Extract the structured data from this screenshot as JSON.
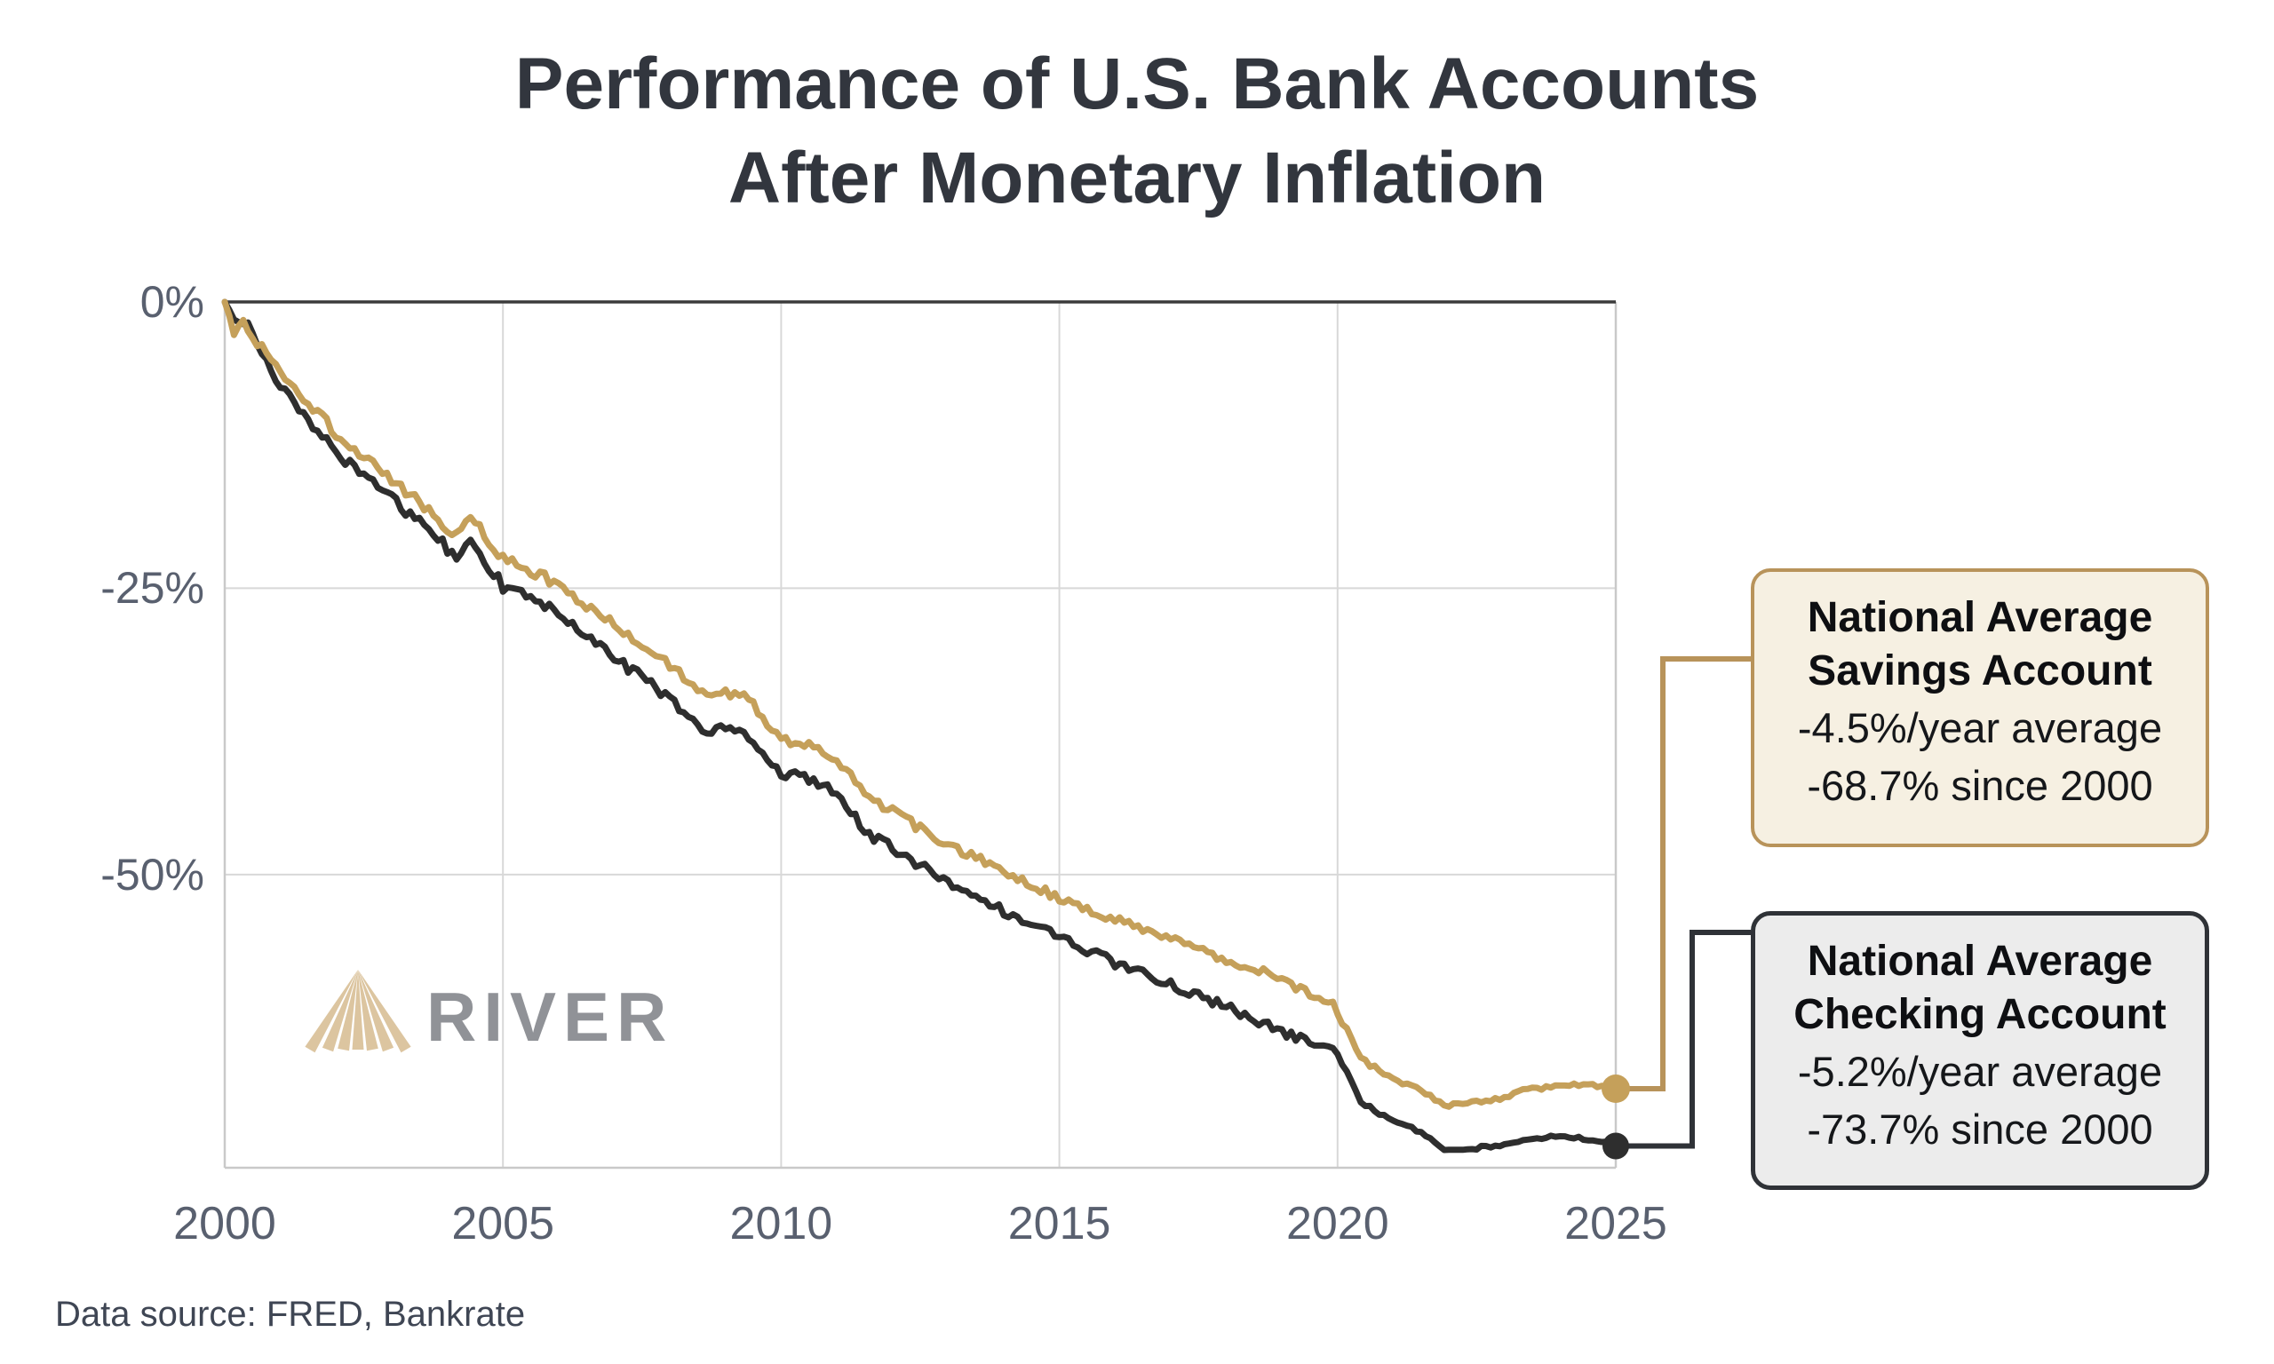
{
  "title": {
    "line1": "Performance of U.S. Bank Accounts",
    "line2": "After Monetary Inflation"
  },
  "footer": {
    "data_source": "Data source: FRED, Bankrate"
  },
  "logo": {
    "text": "RIVER",
    "icon": "river-fan-icon",
    "icon_color": "#dcc5a0",
    "text_color": "#909297"
  },
  "annotations": {
    "savings": {
      "title_line1": "National Average",
      "title_line2": "Savings Account",
      "stat1": "-4.5%/year average",
      "stat2": "-68.7% since 2000",
      "bg": "#f6f0e2",
      "border": "#b8935a"
    },
    "checking": {
      "title_line1": "National Average",
      "title_line2": "Checking Account",
      "stat1": "-5.2%/year average",
      "stat2": "-73.7% since 2000",
      "bg": "#ececec",
      "border": "#2f3237"
    }
  },
  "chart_data": {
    "type": "line",
    "title": "Performance of U.S. Bank Accounts After Monetary Inflation",
    "xlabel": "",
    "ylabel": "",
    "grid": true,
    "x": {
      "min": 2000,
      "max": 2025,
      "ticks": [
        2000,
        2005,
        2010,
        2015,
        2020,
        2025
      ],
      "tick_labels": [
        "2000",
        "2005",
        "2010",
        "2015",
        "2020",
        "2025"
      ]
    },
    "y": {
      "min": -75.6,
      "max": 0,
      "ticks": [
        0,
        -25,
        -50
      ],
      "tick_labels": [
        "0%",
        "-25%",
        "-50%"
      ]
    },
    "series": [
      {
        "name": "National Average Checking Account",
        "color": "#2e2e2e",
        "avg_per_year_pct": -5.2,
        "total_since_2000_pct": -73.7,
        "anchors": [
          [
            2000.0,
            0
          ],
          [
            2000.08,
            -0.8
          ],
          [
            2000.21,
            -2.2
          ],
          [
            2000.33,
            -1.9
          ],
          [
            2000.5,
            -2.6
          ],
          [
            2001.0,
            -7.5
          ],
          [
            2001.5,
            -10.2
          ],
          [
            2002.0,
            -13.0
          ],
          [
            2002.5,
            -15.2
          ],
          [
            2003.0,
            -17.2
          ],
          [
            2003.5,
            -19.3
          ],
          [
            2004.0,
            -21.5
          ],
          [
            2004.17,
            -22.4
          ],
          [
            2004.42,
            -20.8
          ],
          [
            2005.0,
            -24.8
          ],
          [
            2006.0,
            -27.2
          ],
          [
            2007.0,
            -31.0
          ],
          [
            2008.0,
            -34.8
          ],
          [
            2008.58,
            -37.3
          ],
          [
            2009.33,
            -37.5
          ],
          [
            2010.0,
            -41.1
          ],
          [
            2010.5,
            -41.6
          ],
          [
            2011.0,
            -42.9
          ],
          [
            2011.58,
            -46.5
          ],
          [
            2012.0,
            -47.7
          ],
          [
            2013.0,
            -50.7
          ],
          [
            2014.0,
            -53.2
          ],
          [
            2015.0,
            -55.4
          ],
          [
            2016.0,
            -57.7
          ],
          [
            2017.0,
            -59.6
          ],
          [
            2018.0,
            -61.6
          ],
          [
            2019.0,
            -63.7
          ],
          [
            2019.67,
            -64.9
          ],
          [
            2019.92,
            -65.2
          ],
          [
            2020.08,
            -66.5
          ],
          [
            2020.42,
            -69.7
          ],
          [
            2020.92,
            -71.4
          ],
          [
            2021.5,
            -72.5
          ],
          [
            2021.92,
            -74.2
          ],
          [
            2022.33,
            -73.9
          ],
          [
            2022.75,
            -73.8
          ],
          [
            2023.33,
            -73.1
          ],
          [
            2023.83,
            -72.9
          ],
          [
            2024.42,
            -73.0
          ],
          [
            2024.75,
            -73.3
          ],
          [
            2025.0,
            -73.7
          ]
        ]
      },
      {
        "name": "National Average Savings Account",
        "color": "#c5a05a",
        "avg_per_year_pct": -4.5,
        "total_since_2000_pct": -68.7,
        "anchors": [
          [
            2000.0,
            0
          ],
          [
            2000.08,
            -1.0
          ],
          [
            2000.21,
            -3.1
          ],
          [
            2000.29,
            -1.5
          ],
          [
            2000.5,
            -2.8
          ],
          [
            2001.0,
            -6.4
          ],
          [
            2001.5,
            -8.8
          ],
          [
            2002.0,
            -11.5
          ],
          [
            2002.5,
            -13.6
          ],
          [
            2003.0,
            -15.5
          ],
          [
            2003.5,
            -17.6
          ],
          [
            2004.0,
            -19.8
          ],
          [
            2004.17,
            -20.6
          ],
          [
            2004.42,
            -18.9
          ],
          [
            2005.0,
            -22.3
          ],
          [
            2006.0,
            -24.6
          ],
          [
            2007.0,
            -28.2
          ],
          [
            2008.0,
            -31.8
          ],
          [
            2008.58,
            -34.0
          ],
          [
            2009.33,
            -34.2
          ],
          [
            2010.0,
            -38.2
          ],
          [
            2010.5,
            -38.6
          ],
          [
            2011.0,
            -40.0
          ],
          [
            2011.58,
            -43.3
          ],
          [
            2012.0,
            -44.5
          ],
          [
            2013.0,
            -47.4
          ],
          [
            2014.0,
            -49.7
          ],
          [
            2015.0,
            -52.0
          ],
          [
            2016.0,
            -54.0
          ],
          [
            2017.0,
            -55.7
          ],
          [
            2018.0,
            -57.4
          ],
          [
            2019.0,
            -59.2
          ],
          [
            2019.67,
            -60.9
          ],
          [
            2019.92,
            -61.2
          ],
          [
            2020.08,
            -62.8
          ],
          [
            2020.42,
            -66.0
          ],
          [
            2020.92,
            -67.7
          ],
          [
            2021.5,
            -68.8
          ],
          [
            2021.92,
            -70.2
          ],
          [
            2022.33,
            -69.9
          ],
          [
            2022.75,
            -69.8
          ],
          [
            2023.33,
            -68.9
          ],
          [
            2023.83,
            -68.5
          ],
          [
            2024.42,
            -68.3
          ],
          [
            2024.75,
            -68.5
          ],
          [
            2025.0,
            -68.7
          ]
        ]
      }
    ],
    "colors": {
      "grid": "#d8d8d8",
      "axis_border_light": "#c9c9c9",
      "axis_border_dark": "#3b3b3b",
      "tick_label": "#59606f"
    }
  }
}
